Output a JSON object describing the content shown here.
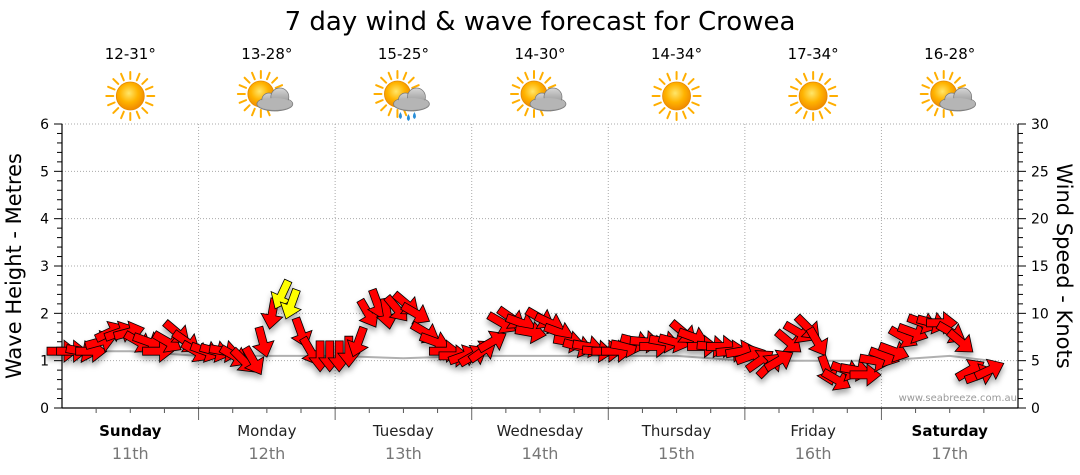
{
  "chart_data": {
    "type": "line",
    "title": "7 day wind & wave forecast for Crowea",
    "ylabel_left": "Wave Height - Metres",
    "ylabel_right": "Wind Speed - Knots",
    "ylim_left": [
      0,
      6
    ],
    "ylim_right": [
      0,
      30
    ],
    "yticks_left": [
      "0",
      "1",
      "2",
      "3",
      "4",
      "5",
      "6"
    ],
    "yticks_right": [
      "0",
      "5",
      "10",
      "15",
      "20",
      "25",
      "30"
    ],
    "grid": true,
    "watermark": "www.seabreeze.com.au",
    "days": [
      {
        "name": "Sunday",
        "date": "11th",
        "bold": true,
        "temp": "12-31°",
        "weather": "sunny"
      },
      {
        "name": "Monday",
        "date": "12th",
        "bold": false,
        "temp": "13-28°",
        "weather": "partly-cloudy"
      },
      {
        "name": "Tuesday",
        "date": "13th",
        "bold": false,
        "temp": "15-25°",
        "weather": "shower"
      },
      {
        "name": "Wednesday",
        "date": "14th",
        "bold": false,
        "temp": "14-30°",
        "weather": "partly-cloudy"
      },
      {
        "name": "Thursday",
        "date": "15th",
        "bold": false,
        "temp": "14-34°",
        "weather": "sunny"
      },
      {
        "name": "Friday",
        "date": "16th",
        "bold": false,
        "temp": "17-34°",
        "weather": "sunny"
      },
      {
        "name": "Saturday",
        "date": "17th",
        "bold": true,
        "temp": "16-28°",
        "weather": "partly-cloudy"
      }
    ],
    "series": [
      {
        "name": "Wind Speed (knots)",
        "colors": {
          "strong": "#ff0000",
          "moderate": "#ffff00"
        },
        "points": [
          {
            "t": 0.0,
            "speed": 6.0,
            "dir": 270
          },
          {
            "t": 0.07,
            "speed": 6.0,
            "dir": 270
          },
          {
            "t": 0.14,
            "speed": 6.0,
            "dir": 280
          },
          {
            "t": 0.21,
            "speed": 6.0,
            "dir": 270
          },
          {
            "t": 0.28,
            "speed": 7.0,
            "dir": 255
          },
          {
            "t": 0.35,
            "speed": 8.0,
            "dir": 245
          },
          {
            "t": 0.42,
            "speed": 8.0,
            "dir": 250
          },
          {
            "t": 0.49,
            "speed": 8.0,
            "dir": 255
          },
          {
            "t": 0.56,
            "speed": 7.0,
            "dir": 300
          },
          {
            "t": 0.63,
            "speed": 7.0,
            "dir": 290
          },
          {
            "t": 0.7,
            "speed": 6.0,
            "dir": 270
          },
          {
            "t": 0.77,
            "speed": 7.0,
            "dir": 300
          },
          {
            "t": 0.84,
            "speed": 8.0,
            "dir": 310
          },
          {
            "t": 0.91,
            "speed": 7.0,
            "dir": 305
          },
          {
            "t": 0.98,
            "speed": 6.0,
            "dir": 300
          },
          {
            "t": 1.05,
            "speed": 6.0,
            "dir": 290
          },
          {
            "t": 1.12,
            "speed": 6.0,
            "dir": 285
          },
          {
            "t": 1.19,
            "speed": 6.0,
            "dir": 280
          },
          {
            "t": 1.26,
            "speed": 5.5,
            "dir": 300
          },
          {
            "t": 1.33,
            "speed": 5.0,
            "dir": 315
          },
          {
            "t": 1.4,
            "speed": 5.0,
            "dir": 330
          },
          {
            "t": 1.47,
            "speed": 7.0,
            "dir": 345
          },
          {
            "t": 1.54,
            "speed": 10.0,
            "dir": 10
          },
          {
            "t": 1.61,
            "speed": 12.0,
            "dir": 25,
            "color": "moderate"
          },
          {
            "t": 1.68,
            "speed": 11.0,
            "dir": 20,
            "color": "moderate"
          },
          {
            "t": 1.75,
            "speed": 8.0,
            "dir": 340
          },
          {
            "t": 1.82,
            "speed": 6.0,
            "dir": 330
          },
          {
            "t": 1.89,
            "speed": 5.5,
            "dir": 0
          },
          {
            "t": 1.96,
            "speed": 5.5,
            "dir": 0
          },
          {
            "t": 2.03,
            "speed": 5.5,
            "dir": 0
          },
          {
            "t": 2.1,
            "speed": 6.0,
            "dir": 0
          },
          {
            "t": 2.17,
            "speed": 7.0,
            "dir": 20
          },
          {
            "t": 2.24,
            "speed": 10.0,
            "dir": 330
          },
          {
            "t": 2.31,
            "speed": 11.0,
            "dir": 340
          },
          {
            "t": 2.38,
            "speed": 10.0,
            "dir": 350
          },
          {
            "t": 2.45,
            "speed": 10.5,
            "dir": 320
          },
          {
            "t": 2.52,
            "speed": 11.0,
            "dir": 310
          },
          {
            "t": 2.59,
            "speed": 10.0,
            "dir": 300
          },
          {
            "t": 2.66,
            "speed": 8.0,
            "dir": 300
          },
          {
            "t": 2.73,
            "speed": 7.0,
            "dir": 290
          },
          {
            "t": 2.8,
            "speed": 6.0,
            "dir": 270
          },
          {
            "t": 2.87,
            "speed": 5.5,
            "dir": 270
          },
          {
            "t": 2.94,
            "speed": 5.5,
            "dir": 250
          },
          {
            "t": 3.01,
            "speed": 5.5,
            "dir": 240
          },
          {
            "t": 3.08,
            "speed": 6.0,
            "dir": 235
          },
          {
            "t": 3.15,
            "speed": 7.0,
            "dir": 240
          },
          {
            "t": 3.22,
            "speed": 9.0,
            "dir": 300
          },
          {
            "t": 3.29,
            "speed": 9.5,
            "dir": 305
          },
          {
            "t": 3.36,
            "speed": 9.0,
            "dir": 290
          },
          {
            "t": 3.43,
            "speed": 8.0,
            "dir": 280
          },
          {
            "t": 3.5,
            "speed": 9.5,
            "dir": 300
          },
          {
            "t": 3.57,
            "speed": 9.0,
            "dir": 295
          },
          {
            "t": 3.64,
            "speed": 8.0,
            "dir": 290
          },
          {
            "t": 3.71,
            "speed": 7.0,
            "dir": 280
          },
          {
            "t": 3.78,
            "speed": 6.5,
            "dir": 285
          },
          {
            "t": 3.85,
            "speed": 6.5,
            "dir": 280
          },
          {
            "t": 3.92,
            "speed": 6.0,
            "dir": 275
          },
          {
            "t": 3.99,
            "speed": 6.0,
            "dir": 270
          },
          {
            "t": 4.06,
            "speed": 6.0,
            "dir": 270
          },
          {
            "t": 4.13,
            "speed": 6.5,
            "dir": 280
          },
          {
            "t": 4.2,
            "speed": 7.0,
            "dir": 285
          },
          {
            "t": 4.27,
            "speed": 7.0,
            "dir": 275
          },
          {
            "t": 4.34,
            "speed": 6.5,
            "dir": 270
          },
          {
            "t": 4.41,
            "speed": 7.0,
            "dir": 280
          },
          {
            "t": 4.48,
            "speed": 7.0,
            "dir": 285
          },
          {
            "t": 4.55,
            "speed": 8.0,
            "dir": 310
          },
          {
            "t": 4.62,
            "speed": 7.5,
            "dir": 290
          },
          {
            "t": 4.69,
            "speed": 6.5,
            "dir": 270
          },
          {
            "t": 4.76,
            "speed": 6.5,
            "dir": 275
          },
          {
            "t": 4.83,
            "speed": 6.5,
            "dir": 270
          },
          {
            "t": 4.9,
            "speed": 6.0,
            "dir": 265
          },
          {
            "t": 4.97,
            "speed": 6.0,
            "dir": 260
          },
          {
            "t": 5.04,
            "speed": 5.5,
            "dir": 250
          },
          {
            "t": 5.11,
            "speed": 5.0,
            "dir": 235
          },
          {
            "t": 5.18,
            "speed": 4.5,
            "dir": 225
          },
          {
            "t": 5.25,
            "speed": 5.0,
            "dir": 240
          },
          {
            "t": 5.32,
            "speed": 7.0,
            "dir": 310
          },
          {
            "t": 5.39,
            "speed": 8.0,
            "dir": 300
          },
          {
            "t": 5.46,
            "speed": 8.5,
            "dir": 315
          },
          {
            "t": 5.53,
            "speed": 7.0,
            "dir": 330
          },
          {
            "t": 5.6,
            "speed": 4.0,
            "dir": 340
          },
          {
            "t": 5.67,
            "speed": 3.0,
            "dir": 300
          },
          {
            "t": 5.74,
            "speed": 4.0,
            "dir": 290
          },
          {
            "t": 5.81,
            "speed": 4.0,
            "dir": 280
          },
          {
            "t": 5.88,
            "speed": 3.5,
            "dir": 270
          },
          {
            "t": 5.95,
            "speed": 5.0,
            "dir": 280
          },
          {
            "t": 6.02,
            "speed": 5.5,
            "dir": 290
          },
          {
            "t": 6.09,
            "speed": 6.0,
            "dir": 290
          },
          {
            "t": 6.16,
            "speed": 7.5,
            "dir": 300
          },
          {
            "t": 6.23,
            "speed": 8.0,
            "dir": 290
          },
          {
            "t": 6.3,
            "speed": 9.0,
            "dir": 290
          },
          {
            "t": 6.37,
            "speed": 9.0,
            "dir": 285
          },
          {
            "t": 6.44,
            "speed": 9.0,
            "dir": 270
          },
          {
            "t": 6.51,
            "speed": 8.0,
            "dir": 300
          },
          {
            "t": 6.58,
            "speed": 7.0,
            "dir": 310
          },
          {
            "t": 6.65,
            "speed": 4.0,
            "dir": 240
          },
          {
            "t": 6.72,
            "speed": 3.5,
            "dir": 250
          },
          {
            "t": 6.79,
            "speed": 4.0,
            "dir": 245
          }
        ]
      },
      {
        "name": "Wave Height (metres)",
        "color": "#b0b0b0",
        "x": [
          0.0,
          0.5,
          1.0,
          1.5,
          2.0,
          2.5,
          3.0,
          3.5,
          4.0,
          4.5,
          5.0,
          5.5,
          6.0,
          6.5,
          6.8
        ],
        "values": [
          1.2,
          1.2,
          1.1,
          1.1,
          1.1,
          1.05,
          1.1,
          1.1,
          1.1,
          1.1,
          1.0,
          1.0,
          1.0,
          1.1,
          1.0
        ]
      }
    ]
  }
}
